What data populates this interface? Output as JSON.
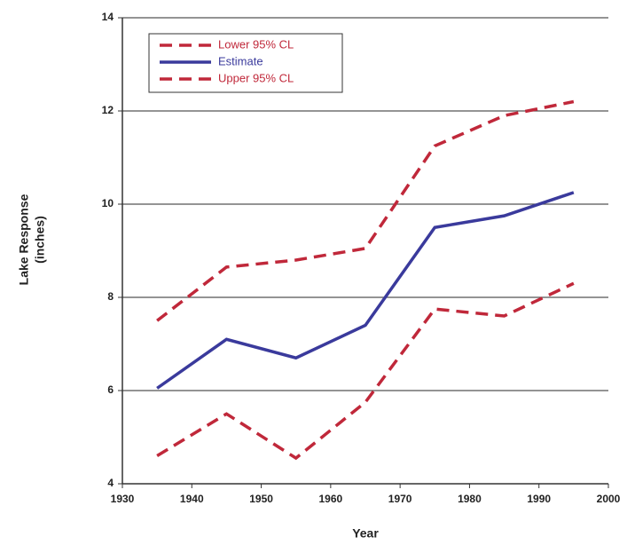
{
  "chart_data": {
    "type": "line",
    "x_label": "Year",
    "y_label": [
      "Lake Response",
      "(inches)"
    ],
    "x": [
      1935,
      1945,
      1955,
      1965,
      1975,
      1985,
      1995
    ],
    "series": [
      {
        "name": "Lower 95% CL",
        "color": "#c0283a",
        "dash": true,
        "values": [
          4.6,
          5.5,
          4.55,
          5.75,
          7.75,
          7.6,
          8.3
        ]
      },
      {
        "name": "Estimate",
        "color": "#3a3a9c",
        "dash": false,
        "values": [
          6.05,
          7.1,
          6.7,
          7.4,
          9.5,
          9.75,
          10.25
        ]
      },
      {
        "name": "Upper 95% CL",
        "color": "#c0283a",
        "dash": true,
        "values": [
          7.5,
          8.65,
          8.8,
          9.05,
          11.25,
          11.9,
          12.2
        ]
      }
    ],
    "xlim": [
      1930,
      2000
    ],
    "xticks": [
      1930,
      1940,
      1950,
      1960,
      1970,
      1980,
      1990,
      2000
    ],
    "ylim": [
      4,
      14
    ],
    "yticks": [
      4,
      6,
      8,
      10,
      12,
      14
    ],
    "grid": true,
    "legend": "upper-left"
  }
}
